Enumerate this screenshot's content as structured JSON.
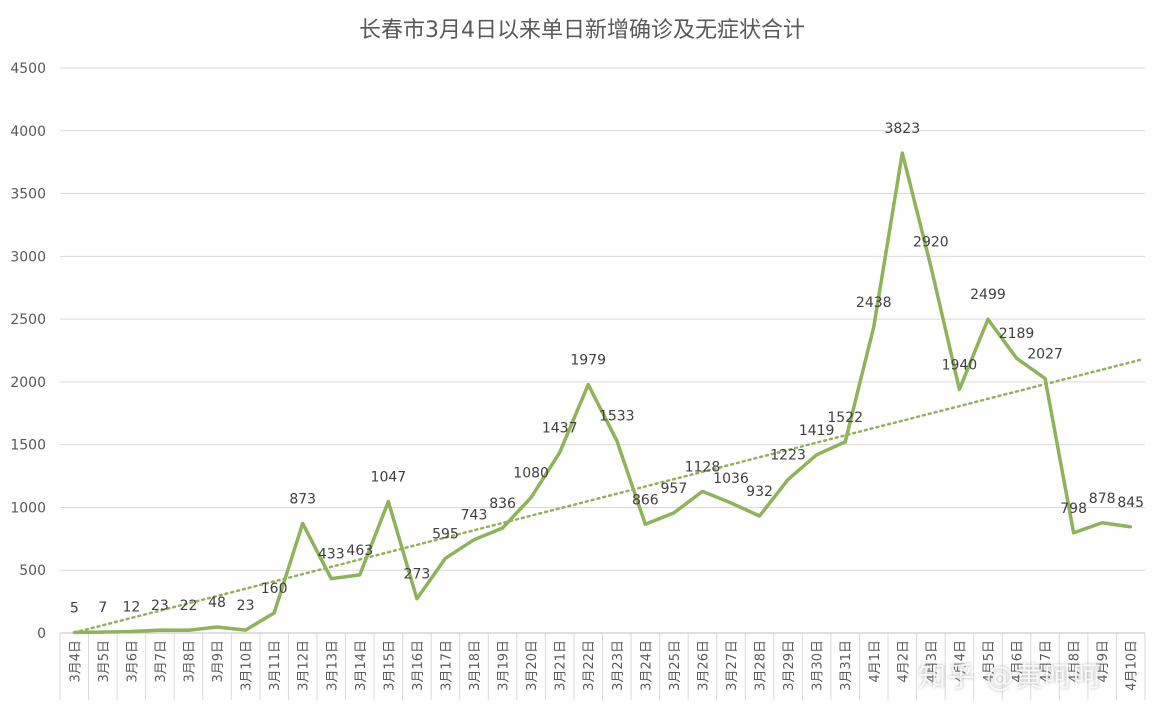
{
  "chart_data": {
    "type": "line",
    "title": "长春市3月4日以来单日新增确诊及无症状合计",
    "xlabel": "",
    "ylabel": "",
    "ylim": [
      0,
      4500
    ],
    "yticks": [
      0,
      500,
      1000,
      1500,
      2000,
      2500,
      3000,
      3500,
      4000,
      4500
    ],
    "grid": true,
    "legend": "none",
    "categories": [
      "3月4日",
      "3月5日",
      "3月6日",
      "3月7日",
      "3月8日",
      "3月9日",
      "3月10日",
      "3月11日",
      "3月12日",
      "3月13日",
      "3月14日",
      "3月15日",
      "3月16日",
      "3月17日",
      "3月18日",
      "3月19日",
      "3月20日",
      "3月21日",
      "3月22日",
      "3月23日",
      "3月24日",
      "3月25日",
      "3月26日",
      "3月27日",
      "3月28日",
      "3月29日",
      "3月30日",
      "3月31日",
      "4月1日",
      "4月2日",
      "4月3日",
      "4月4日",
      "4月5日",
      "4月6日",
      "4月7日",
      "4月8日",
      "4月9日",
      "4月10日"
    ],
    "series": [
      {
        "values": [
          5,
          7,
          12,
          23,
          22,
          48,
          23,
          160,
          873,
          433,
          463,
          1047,
          273,
          595,
          743,
          836,
          1080,
          1437,
          1979,
          1533,
          866,
          957,
          1128,
          1036,
          932,
          1223,
          1419,
          1522,
          2438,
          3823,
          2920,
          1940,
          2499,
          2189,
          2027,
          798,
          878,
          845
        ],
        "color": "#8fb35a"
      }
    ],
    "trendline": {
      "type": "linear",
      "style": "dotted",
      "color": "#8fb35a"
    }
  },
  "watermark": "知乎 @黄呵呵"
}
